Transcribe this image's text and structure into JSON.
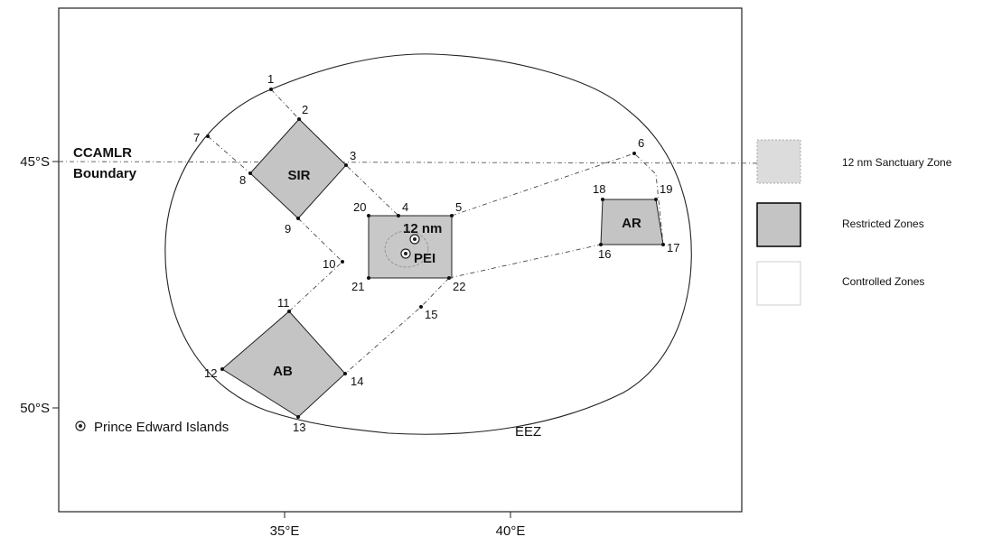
{
  "axes": {
    "y_ticks": [
      "45°S",
      "50°S"
    ],
    "x_ticks": [
      "35°E",
      "40°E"
    ]
  },
  "labels": {
    "ccamlr_line1": "CCAMLR",
    "ccamlr_line2": "Boundary",
    "eez": "EEZ",
    "pei_legend": "Prince Edward Islands",
    "nm12": "12 nm",
    "pei": "PEI"
  },
  "zones": {
    "sir": "SIR",
    "ab": "AB",
    "ar": "AR"
  },
  "points": [
    "1",
    "2",
    "3",
    "4",
    "5",
    "6",
    "7",
    "8",
    "9",
    "10",
    "11",
    "12",
    "13",
    "14",
    "15",
    "16",
    "17",
    "18",
    "19",
    "20",
    "21",
    "22"
  ],
  "legend": [
    {
      "label": "12 nm Sanctuary Zone",
      "fill": "#dcdcdc",
      "stroke": "#aaaaaa",
      "style": "dotted"
    },
    {
      "label": "Restricted Zones",
      "fill": "#c4c4c4",
      "stroke": "#000000",
      "style": "solid"
    },
    {
      "label": "Controlled Zones",
      "fill": "#ffffff",
      "stroke": "#cfcfcf",
      "style": "solid"
    }
  ],
  "colors": {
    "restricted": "#c4c4c4",
    "sanctuary": "#dcdcdc",
    "line": "#222222"
  }
}
